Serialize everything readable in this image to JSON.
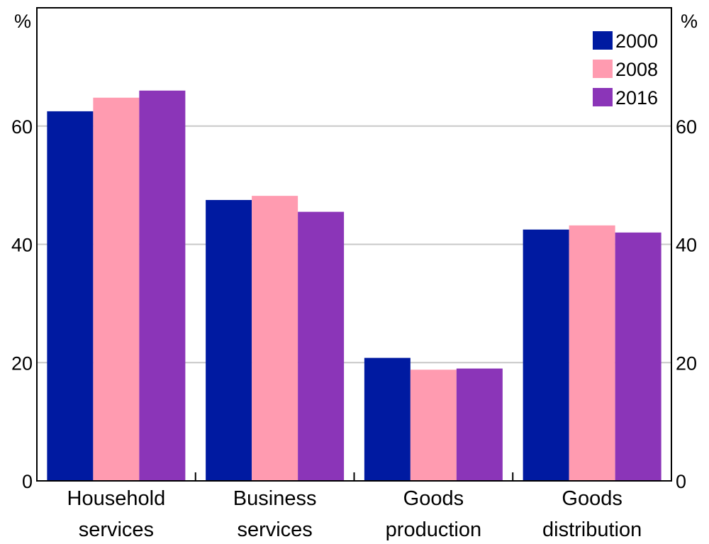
{
  "chart_data": {
    "type": "bar",
    "categories": [
      [
        "Household",
        "services"
      ],
      [
        "Business",
        "services"
      ],
      [
        "Goods",
        "production"
      ],
      [
        "Goods",
        "distribution"
      ]
    ],
    "series": [
      {
        "name": "2000",
        "color": "#001aa1",
        "values": [
          62.5,
          47.5,
          20.8,
          42.5
        ]
      },
      {
        "name": "2008",
        "color": "#ff9bb0",
        "values": [
          64.8,
          48.2,
          18.8,
          43.2
        ]
      },
      {
        "name": "2016",
        "color": "#8b35b8",
        "values": [
          66.0,
          45.5,
          19.0,
          42.0
        ]
      }
    ],
    "ylim": [
      0,
      80
    ],
    "yticks": [
      "0",
      "20",
      "40",
      "60"
    ],
    "ytick_values": [
      0,
      20,
      40,
      60
    ],
    "left_unit": "%",
    "right_unit": "%",
    "grid": true,
    "legend_position": "top-right"
  }
}
